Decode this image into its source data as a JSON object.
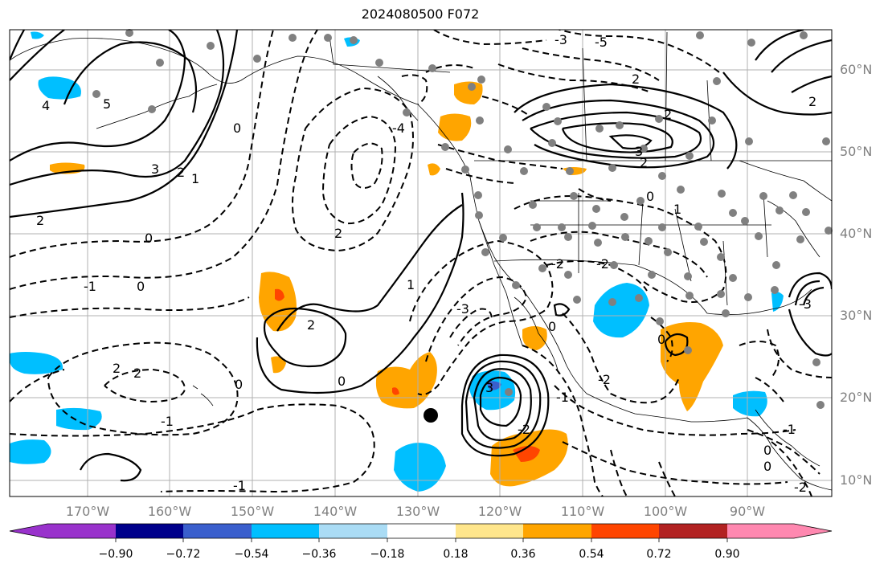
{
  "title": "2024080500 F072",
  "map": {
    "lat_labels": [
      {
        "text": "60°N",
        "lat": 60
      },
      {
        "text": "50°N",
        "lat": 50
      },
      {
        "text": "40°N",
        "lat": 40
      },
      {
        "text": "30°N",
        "lat": 30
      },
      {
        "text": "20°N",
        "lat": 20
      },
      {
        "text": "10°N",
        "lat": 10
      }
    ],
    "lon_labels": [
      {
        "text": "170°W",
        "lon": -170
      },
      {
        "text": "160°W",
        "lon": -160
      },
      {
        "text": "150°W",
        "lon": -150
      },
      {
        "text": "140°W",
        "lon": -140
      },
      {
        "text": "130°W",
        "lon": -130
      },
      {
        "text": "120°W",
        "lon": -120
      },
      {
        "text": "110°W",
        "lon": -110
      },
      {
        "text": "100°W",
        "lon": -100
      },
      {
        "text": "90°W",
        "lon": -90
      }
    ],
    "contour_labels": [
      "4",
      "5",
      "0",
      "3",
      "2",
      "1",
      "-1",
      "0",
      "2",
      "2",
      "-1",
      "0",
      "0",
      "2",
      "1",
      "0",
      "2",
      "2",
      "-4",
      "-5",
      "-3",
      "2",
      "2",
      "3",
      "2",
      "0",
      "1",
      "-2",
      "2",
      "-2",
      "0",
      "0",
      "-2",
      "3",
      "-3",
      "-2",
      "-1",
      "-1",
      "0",
      "0",
      "-1",
      "-2",
      "-3"
    ],
    "colors": {
      "land_line": "#000000",
      "grid": "#b0b0b0",
      "station_dot": "#808080",
      "center_marker": "#000000",
      "label_gray": "#808080"
    }
  },
  "colorbar": {
    "ticks": [
      "−0.90",
      "−0.72",
      "−0.54",
      "−0.36",
      "−0.18",
      "0.18",
      "0.36",
      "0.54",
      "0.72",
      "0.90"
    ],
    "colors": [
      "#9932cc",
      "#00008b",
      "#3a5fcd",
      "#00bfff",
      "#aadcf5",
      "#ffffff",
      "#ffe68c",
      "#ffa500",
      "#ff4500",
      "#b22222",
      "#ff88b0"
    ]
  }
}
